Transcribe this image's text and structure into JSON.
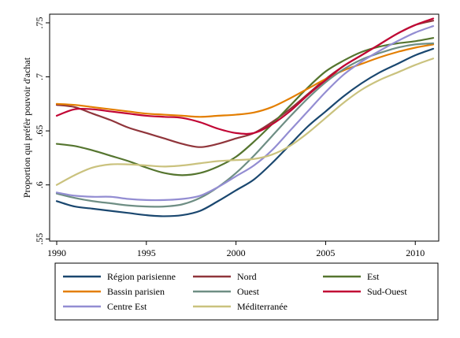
{
  "chart_data": {
    "type": "line",
    "title": "",
    "xlabel": "",
    "ylabel": "Proportion qui préfèr pouvoir d'achat",
    "xlim": [
      1990,
      2011
    ],
    "ylim": [
      0.548,
      0.758
    ],
    "xticks": [
      1990,
      1995,
      2000,
      2005,
      2010
    ],
    "xtick_labels": [
      "1990",
      "1995",
      "2000",
      "2005",
      "2010"
    ],
    "yticks": [
      0.55,
      0.6,
      0.65,
      0.7,
      0.75
    ],
    "ytick_labels": [
      ".55",
      ".6",
      ".65",
      ".7",
      ".75"
    ],
    "grid": false,
    "legend_position": "bottom",
    "x": [
      1990,
      1991,
      1992,
      1993,
      1994,
      1995,
      1996,
      1997,
      1998,
      1999,
      2000,
      2001,
      2002,
      2003,
      2004,
      2005,
      2006,
      2007,
      2008,
      2009,
      2010,
      2011
    ],
    "series": [
      {
        "name": "Région parisienne",
        "color": "#1a476f",
        "values": [
          0.585,
          0.58,
          0.578,
          0.576,
          0.574,
          0.572,
          0.571,
          0.572,
          0.576,
          0.585,
          0.595,
          0.605,
          0.62,
          0.637,
          0.654,
          0.668,
          0.682,
          0.694,
          0.704,
          0.712,
          0.72,
          0.726
        ]
      },
      {
        "name": "Nord",
        "color": "#90353b",
        "values": [
          0.674,
          0.672,
          0.666,
          0.66,
          0.653,
          0.648,
          0.643,
          0.638,
          0.635,
          0.638,
          0.643,
          0.648,
          0.658,
          0.67,
          0.684,
          0.698,
          0.71,
          0.72,
          0.73,
          0.74,
          0.748,
          0.752
        ]
      },
      {
        "name": "Est",
        "color": "#55752f",
        "values": [
          0.638,
          0.636,
          0.632,
          0.627,
          0.622,
          0.616,
          0.611,
          0.609,
          0.611,
          0.617,
          0.626,
          0.64,
          0.656,
          0.673,
          0.69,
          0.705,
          0.715,
          0.723,
          0.728,
          0.731,
          0.733,
          0.736
        ]
      },
      {
        "name": "Bassin parisien",
        "color": "#e37e00",
        "values": [
          0.675,
          0.674,
          0.672,
          0.67,
          0.668,
          0.666,
          0.665,
          0.664,
          0.663,
          0.664,
          0.665,
          0.667,
          0.672,
          0.68,
          0.689,
          0.698,
          0.706,
          0.712,
          0.718,
          0.723,
          0.727,
          0.73
        ]
      },
      {
        "name": "Ouest",
        "color": "#6e8e84",
        "values": [
          0.592,
          0.588,
          0.585,
          0.583,
          0.581,
          0.58,
          0.58,
          0.582,
          0.588,
          0.598,
          0.611,
          0.627,
          0.645,
          0.663,
          0.68,
          0.695,
          0.707,
          0.716,
          0.722,
          0.727,
          0.73,
          0.731
        ]
      },
      {
        "name": "Sud-Ouest",
        "color": "#c10534",
        "values": [
          0.664,
          0.67,
          0.67,
          0.668,
          0.666,
          0.664,
          0.663,
          0.662,
          0.658,
          0.652,
          0.648,
          0.648,
          0.656,
          0.668,
          0.683,
          0.697,
          0.71,
          0.72,
          0.73,
          0.74,
          0.748,
          0.754
        ]
      },
      {
        "name": "Centre Est",
        "color": "#938dd2",
        "values": [
          0.593,
          0.59,
          0.589,
          0.589,
          0.587,
          0.586,
          0.586,
          0.587,
          0.59,
          0.598,
          0.608,
          0.618,
          0.632,
          0.65,
          0.668,
          0.686,
          0.702,
          0.714,
          0.724,
          0.733,
          0.741,
          0.747
        ]
      },
      {
        "name": "Méditerranée",
        "color": "#cac27e",
        "values": [
          0.6,
          0.609,
          0.616,
          0.619,
          0.619,
          0.618,
          0.617,
          0.618,
          0.62,
          0.622,
          0.623,
          0.624,
          0.628,
          0.636,
          0.648,
          0.662,
          0.676,
          0.688,
          0.697,
          0.704,
          0.711,
          0.717
        ]
      }
    ]
  }
}
